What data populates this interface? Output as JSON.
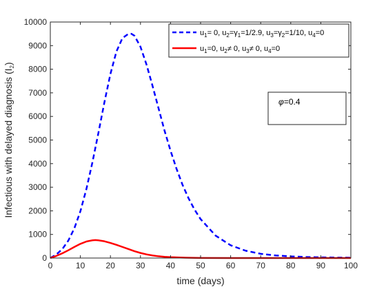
{
  "chart_data": {
    "type": "line",
    "xlabel": "time (days)",
    "ylabel": "Infectious with delayed diagnosis (I",
    "ylabel_sub": "2",
    "ylabel_close": ")",
    "xlim": [
      0,
      100
    ],
    "ylim": [
      0,
      10000
    ],
    "xticks": [
      0,
      10,
      20,
      30,
      40,
      50,
      60,
      70,
      80,
      90,
      100
    ],
    "yticks": [
      0,
      1000,
      2000,
      3000,
      4000,
      5000,
      6000,
      7000,
      8000,
      9000,
      10000
    ],
    "grid": false,
    "legend_position": "top-right",
    "annotation": {
      "symbol": "φ",
      "text": "=0.4"
    },
    "series": [
      {
        "name": "u1= 0, u2=γ1=1/2.9, u3=γ2=1/10, u4=0",
        "legend": [
          {
            "t": "u"
          },
          {
            "t": "1",
            "sub": true
          },
          {
            "t": "= 0, u"
          },
          {
            "t": "2",
            "sub": true
          },
          {
            "t": "=γ"
          },
          {
            "t": "1",
            "sub": true
          },
          {
            "t": "=1/2.9, u"
          },
          {
            "t": "3",
            "sub": true
          },
          {
            "t": "=γ"
          },
          {
            "t": "2",
            "sub": true
          },
          {
            "t": "=1/10, u"
          },
          {
            "t": "4",
            "sub": true
          },
          {
            "t": "=0"
          }
        ],
        "color": "#0000ff",
        "style": "dashed",
        "x": [
          0,
          2,
          4,
          6,
          8,
          10,
          12,
          14,
          16,
          18,
          20,
          22,
          24,
          26,
          27,
          28,
          30,
          32,
          34,
          36,
          38,
          40,
          42,
          44,
          46,
          48,
          50,
          55,
          60,
          65,
          70,
          75,
          80,
          85,
          90,
          95,
          100
        ],
        "values": [
          0,
          150,
          380,
          740,
          1260,
          1980,
          2920,
          4050,
          5300,
          6600,
          7800,
          8750,
          9320,
          9500,
          9500,
          9420,
          8950,
          8200,
          7300,
          6350,
          5400,
          4550,
          3780,
          3100,
          2530,
          2050,
          1650,
          950,
          540,
          310,
          180,
          110,
          70,
          45,
          30,
          20,
          15
        ]
      },
      {
        "name": "u1=0, u2≠ 0, u3≠ 0, u4=0",
        "legend": [
          {
            "t": "u"
          },
          {
            "t": "1",
            "sub": true
          },
          {
            "t": "=0, u"
          },
          {
            "t": "2",
            "sub": true
          },
          {
            "t": "≠ 0, u"
          },
          {
            "t": "3",
            "sub": true
          },
          {
            "t": "≠ 0, u"
          },
          {
            "t": "4",
            "sub": true
          },
          {
            "t": "=0"
          }
        ],
        "color": "#ff0000",
        "style": "solid",
        "x": [
          0,
          2,
          4,
          6,
          8,
          10,
          12,
          14,
          15,
          16,
          18,
          20,
          22,
          24,
          26,
          28,
          30,
          32,
          34,
          36,
          38,
          40,
          45,
          50,
          60,
          70,
          80,
          90,
          100
        ],
        "values": [
          0,
          90,
          200,
          330,
          470,
          600,
          700,
          750,
          760,
          750,
          710,
          640,
          560,
          470,
          380,
          290,
          215,
          155,
          110,
          75,
          50,
          35,
          15,
          5,
          0,
          0,
          0,
          0,
          0
        ]
      }
    ]
  }
}
